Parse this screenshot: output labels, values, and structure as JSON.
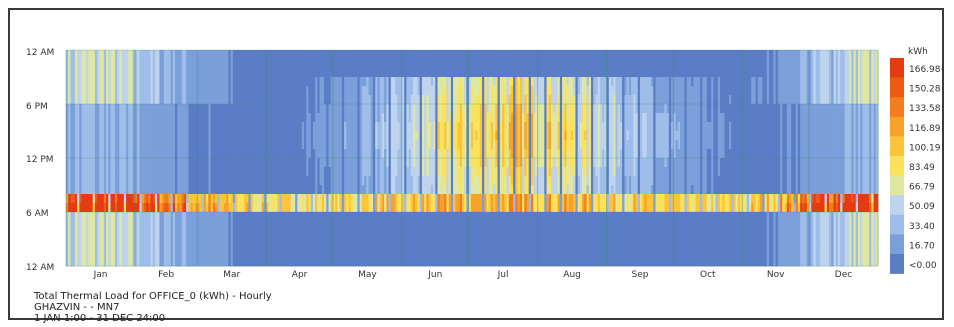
{
  "caption": {
    "line1": "Total Thermal Load for OFFICE_0 (kWh) - Hourly",
    "line2": "GHAZVIN - - MN7",
    "line3": "1 JAN 1:00 - 31 DEC 24:00"
  },
  "chart_data": {
    "type": "heatmap",
    "title": "Total Thermal Load for OFFICE_0 (kWh) - Hourly",
    "x_axis": {
      "type": "day-of-year",
      "range": [
        "1 JAN",
        "31 DEC"
      ],
      "tick_labels": [
        "Jan",
        "Feb",
        "Mar",
        "Apr",
        "May",
        "Jun",
        "Jul",
        "Aug",
        "Sep",
        "Oct",
        "Nov",
        "Dec"
      ]
    },
    "y_axis": {
      "type": "hour-of-day",
      "top_to_bottom": [
        "12 AM",
        "6 PM",
        "12 PM",
        "6 AM",
        "12 AM"
      ]
    },
    "legend": {
      "unit": "kWh",
      "placement": "right",
      "labels": [
        "166.98<",
        "150.28",
        "133.58",
        "116.89",
        "100.19",
        "83.49",
        "66.79",
        "50.09",
        "33.40",
        "16.70",
        "<0.00"
      ],
      "colors": [
        "#e33b12",
        "#ed5a16",
        "#f27d1d",
        "#f6a12a",
        "#fbc43a",
        "#fbe25c",
        "#dfe7a0",
        "#bfd4ec",
        "#9ebde9",
        "#7b9fd9",
        "#5a7dc6"
      ]
    },
    "grid": true,
    "description_values": {
      "morning_peak_hours": [
        7,
        8
      ],
      "morning_peak_months": [
        "Jan",
        "Feb",
        "Mar",
        "Apr",
        "May",
        "Jun",
        "Jul",
        "Aug",
        "Sep",
        "Oct",
        "Nov",
        "Dec"
      ],
      "summer_daytime_band_months": [
        "May",
        "Jun",
        "Jul",
        "Aug",
        "Sep",
        "Oct"
      ],
      "summer_daytime_band_hours": [
        8,
        20
      ]
    }
  }
}
